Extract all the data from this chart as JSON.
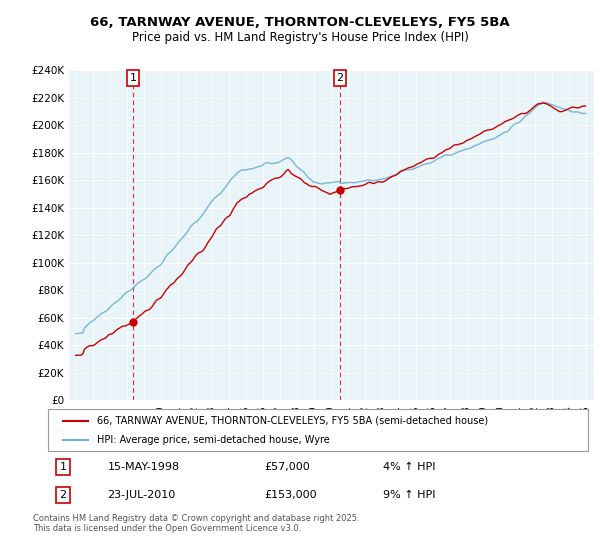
{
  "title": "66, TARNWAY AVENUE, THORNTON-CLEVELEYS, FY5 5BA",
  "subtitle": "Price paid vs. HM Land Registry's House Price Index (HPI)",
  "legend_line1": "66, TARNWAY AVENUE, THORNTON-CLEVELEYS, FY5 5BA (semi-detached house)",
  "legend_line2": "HPI: Average price, semi-detached house, Wyre",
  "transaction1_date": "15-MAY-1998",
  "transaction1_price": "£57,000",
  "transaction1_hpi": "4% ↑ HPI",
  "transaction2_date": "23-JUL-2010",
  "transaction2_price": "£153,000",
  "transaction2_hpi": "9% ↑ HPI",
  "footer": "Contains HM Land Registry data © Crown copyright and database right 2025.\nThis data is licensed under the Open Government Licence v3.0.",
  "hpi_color": "#6baed6",
  "price_color": "#cc0000",
  "vline_color": "#cc0000",
  "ylim": [
    0,
    240000
  ],
  "yticks": [
    0,
    20000,
    40000,
    60000,
    80000,
    100000,
    120000,
    140000,
    160000,
    180000,
    200000,
    220000,
    240000
  ],
  "transaction1_year": 1998.37,
  "transaction2_year": 2010.55,
  "transaction1_price_val": 57000,
  "transaction2_price_val": 153000
}
